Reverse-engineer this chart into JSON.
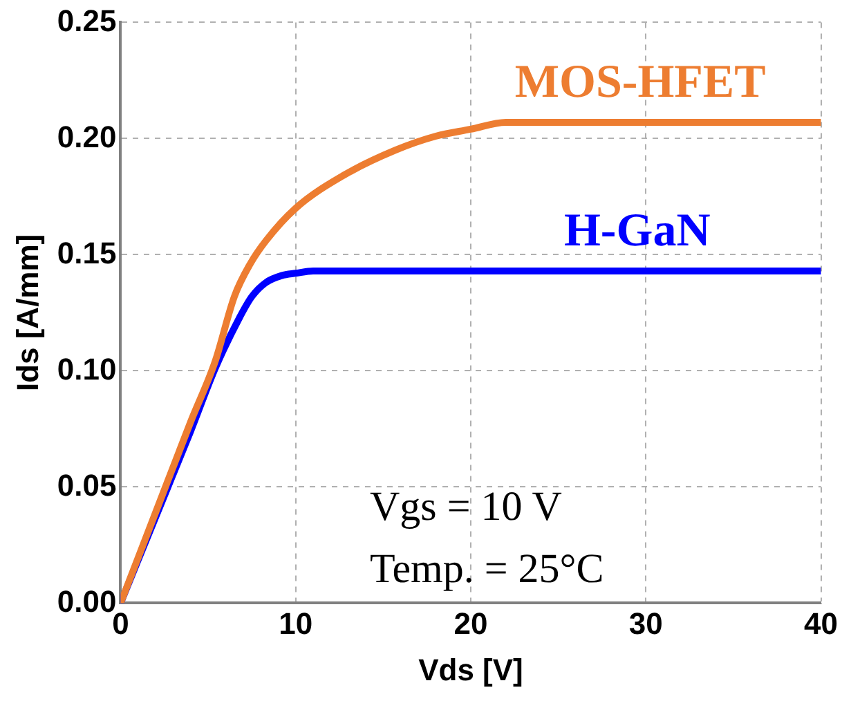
{
  "chart_data": {
    "type": "line",
    "xlabel": "Vds [V]",
    "ylabel": "Ids [A/mm]",
    "xlim": [
      0,
      40
    ],
    "ylim": [
      0,
      0.25
    ],
    "xticks": [
      0,
      10,
      20,
      30,
      40
    ],
    "yticks": [
      {
        "value": 0,
        "label": "0.00"
      },
      {
        "value": 0.05,
        "label": "0.05"
      },
      {
        "value": 0.1,
        "label": "0.10"
      },
      {
        "value": 0.15,
        "label": "0.15"
      },
      {
        "value": 0.2,
        "label": "0.20"
      },
      {
        "value": 0.25,
        "label": "0.25"
      }
    ],
    "grid": true,
    "marker": "none",
    "line_style": "solid",
    "legend": false,
    "series": [
      {
        "name": "MOS-HFET",
        "color": "#ed7d31",
        "x": [
          0,
          2,
          4,
          5.4,
          6.5,
          7.4,
          8.3,
          10,
          12.7,
          15.7,
          18,
          20,
          22,
          25,
          30,
          35,
          40
        ],
        "values": [
          0,
          0.039,
          0.078,
          0.104,
          0.132,
          0.146,
          0.156,
          0.17,
          0.184,
          0.195,
          0.201,
          0.204,
          0.207,
          0.207,
          0.207,
          0.207,
          0.207
        ]
      },
      {
        "name": "H-GaN",
        "color": "#0000ff",
        "x": [
          0,
          2,
          4,
          5.4,
          6.8,
          7.5,
          8.3,
          9.2,
          10,
          11,
          15,
          20,
          25,
          30,
          35,
          40
        ],
        "values": [
          0,
          0.037,
          0.074,
          0.101,
          0.123,
          0.132,
          0.138,
          0.141,
          0.142,
          0.143,
          0.143,
          0.143,
          0.143,
          0.143,
          0.143,
          0.143
        ]
      }
    ],
    "annotations": [
      "Vgs = 10 V",
      "Temp. = 25°C"
    ]
  }
}
